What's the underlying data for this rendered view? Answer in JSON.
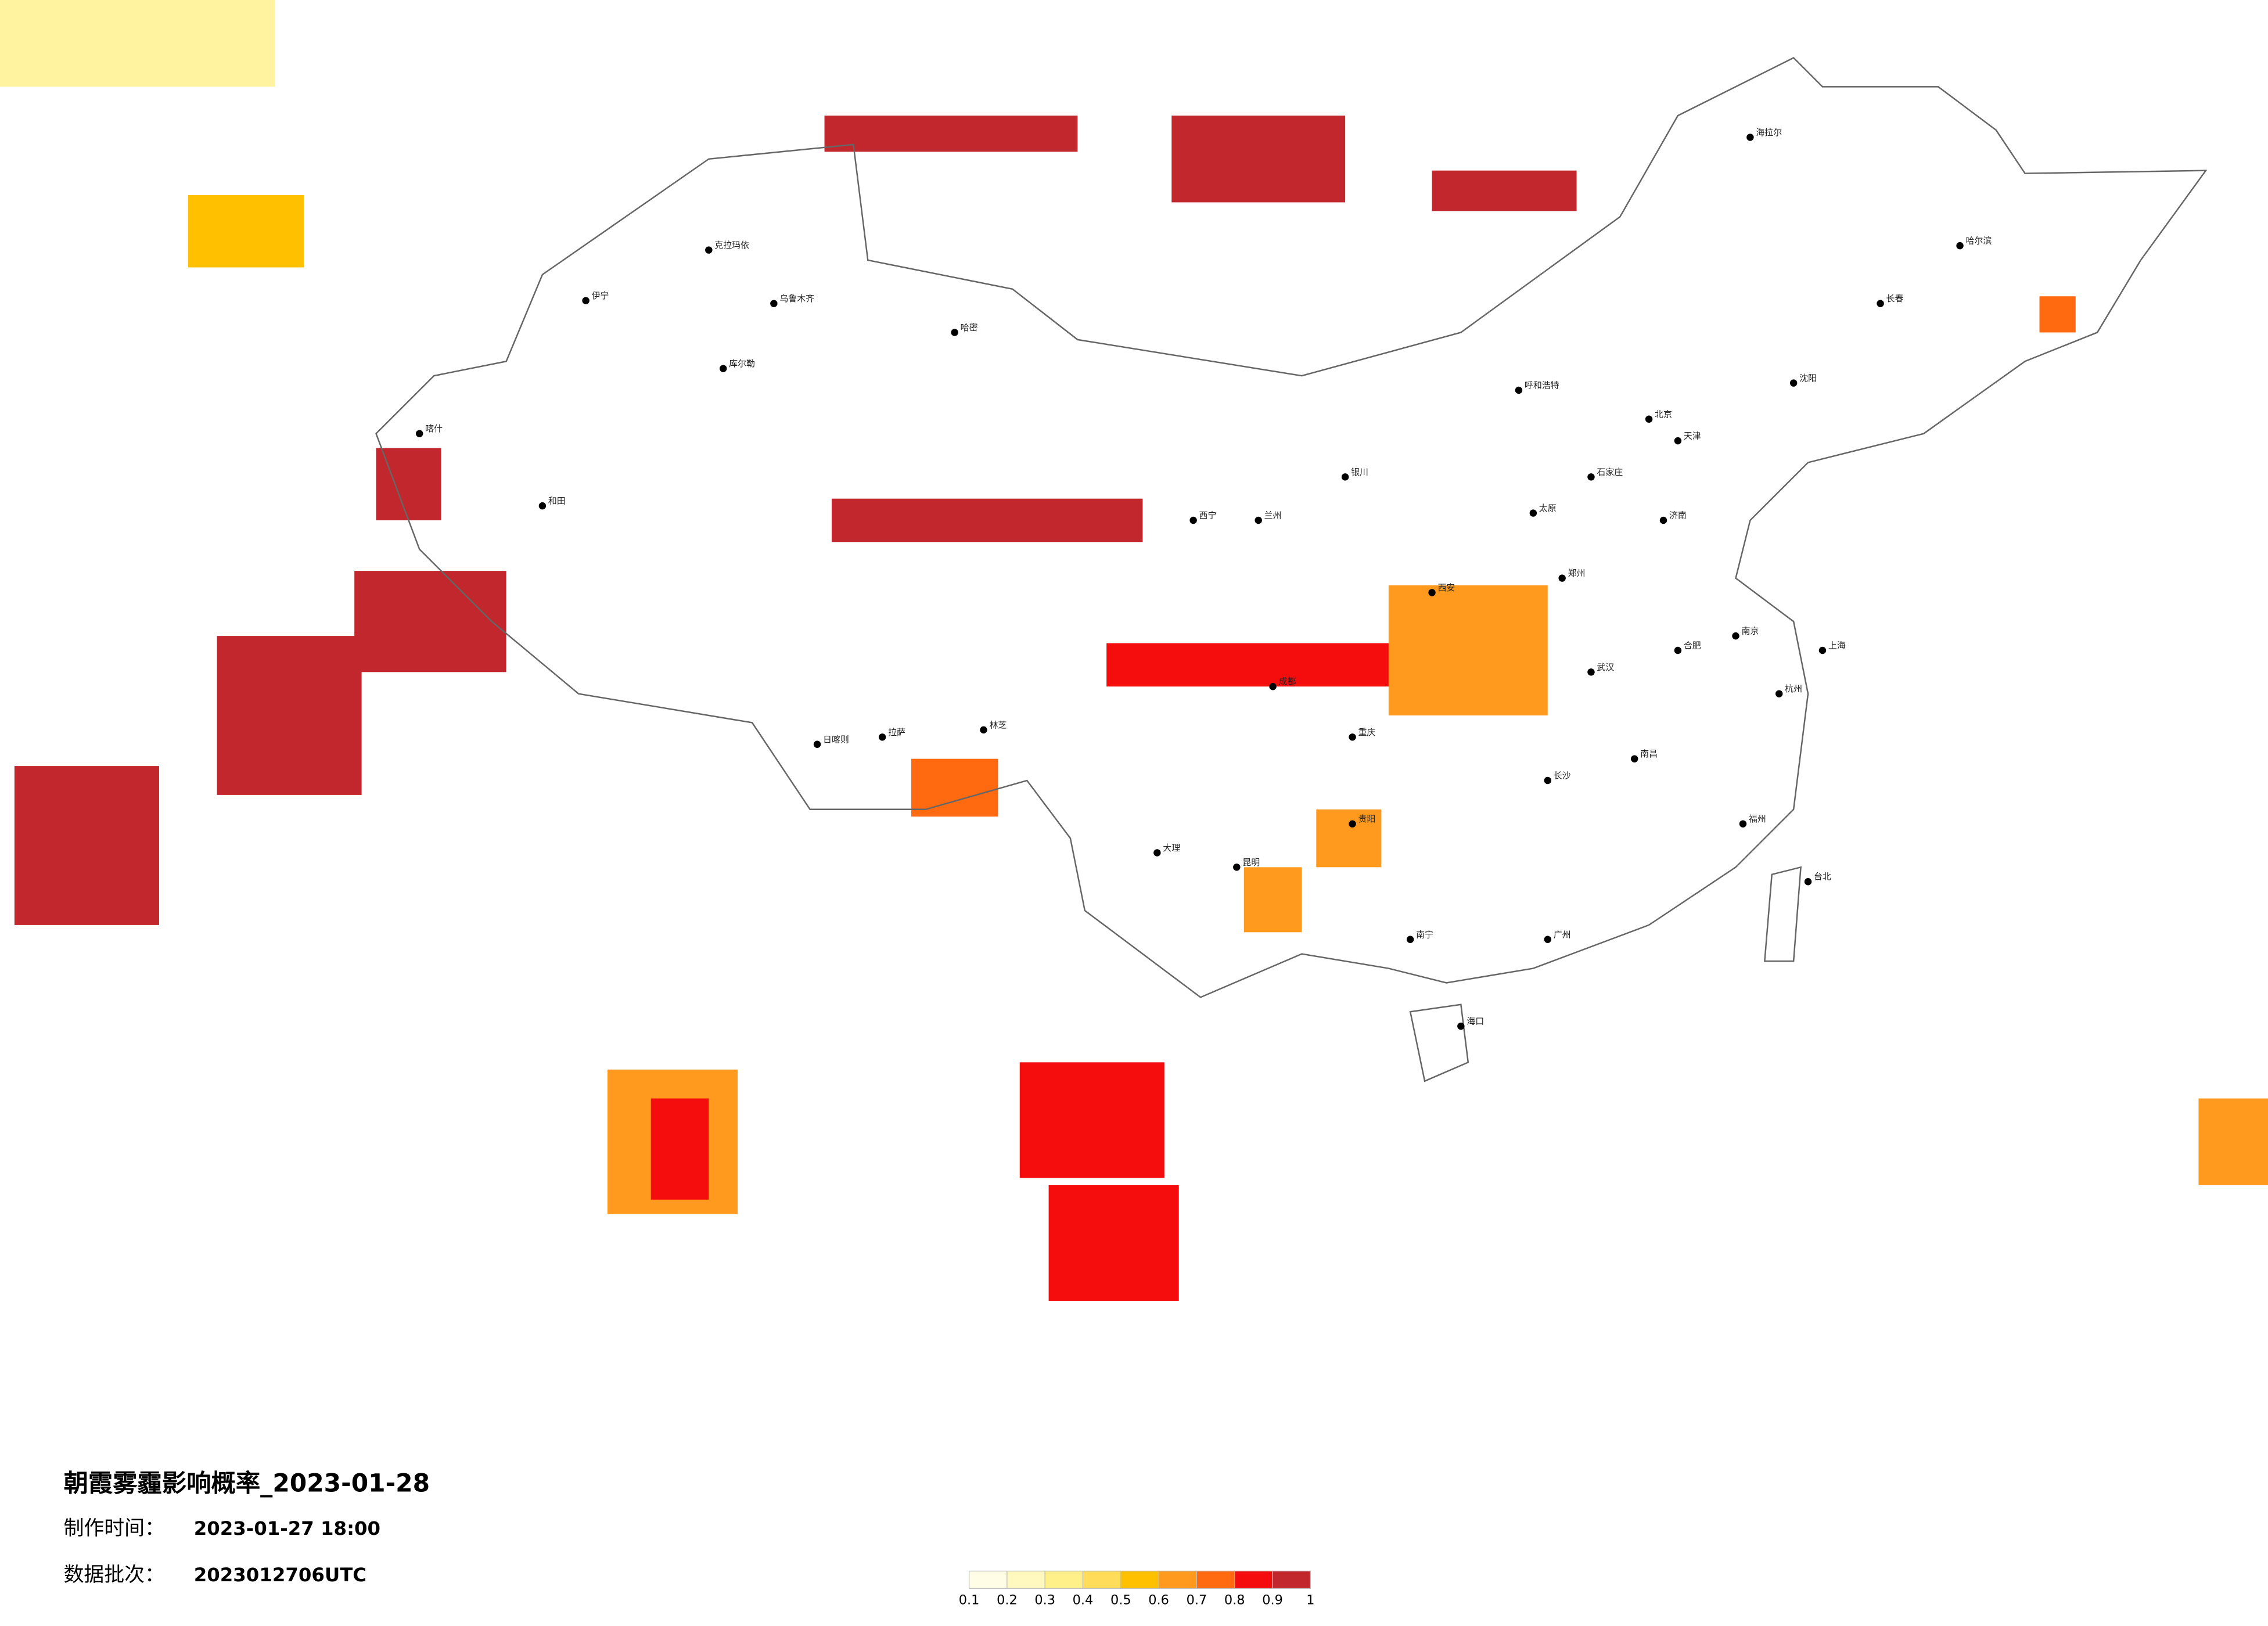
{
  "title": "朝霞雾霾影响概率_2023-01-28",
  "info": [
    {
      "label": "制作时间：",
      "value": "2023-01-27 18:00"
    },
    {
      "label": "数据批次：",
      "value": "2023012706UTC"
    }
  ],
  "legend": {
    "ticks": [
      0.1,
      0.2,
      0.3,
      0.4,
      0.5,
      0.6,
      0.7,
      0.8,
      0.9,
      1
    ],
    "colors": [
      "#fffde6",
      "#fff8bf",
      "#fff08a",
      "#ffdc5a",
      "#ffc000",
      "#ff9a1e",
      "#ff6a10",
      "#f50c0c",
      "#c1272d"
    ]
  },
  "cities": [
    "北京",
    "天津",
    "石家庄",
    "太原",
    "呼和浩特",
    "沈阳",
    "长春",
    "哈尔滨",
    "济南",
    "郑州",
    "西安",
    "兰州",
    "西宁",
    "银川",
    "乌鲁木齐",
    "拉萨",
    "成都",
    "重庆",
    "贵阳",
    "昆明",
    "南宁",
    "广州",
    "长沙",
    "武汉",
    "南昌",
    "合肥",
    "南京",
    "杭州",
    "上海",
    "福州",
    "台北",
    "海口",
    "和田",
    "喀什",
    "克拉玛依",
    "伊宁",
    "哈密",
    "日喀则",
    "林芝",
    "大理",
    "海拉尔",
    "库尔勒"
  ]
}
